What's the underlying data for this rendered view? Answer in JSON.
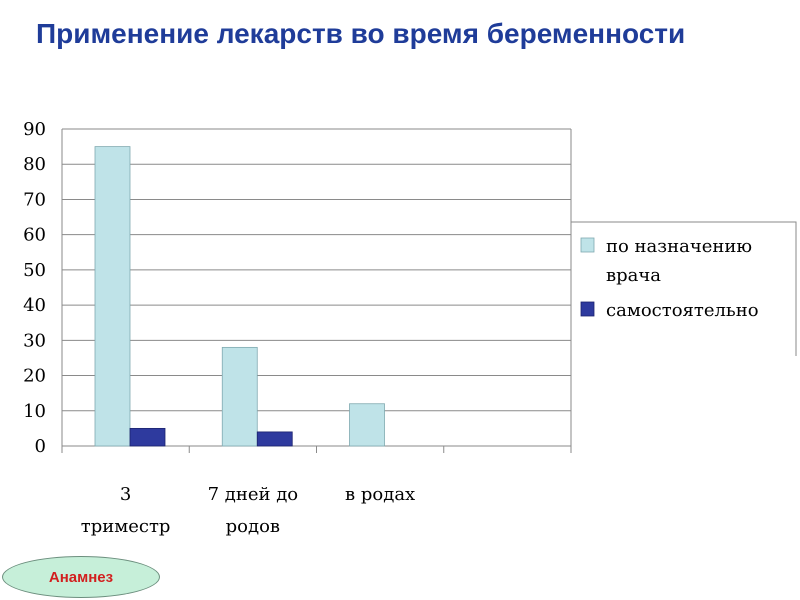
{
  "slide": {
    "title": "Применение лекарств во время беременности",
    "button_label": "Анамнез"
  },
  "colors": {
    "title": "#1f3c99",
    "series_1": "#bfe3e8",
    "series_2": "#2e3a9e",
    "button_fill": "#c6efd9",
    "button_text": "#d21f1f"
  },
  "chart_data": {
    "type": "bar",
    "categories": [
      [
        "3",
        "триместр"
      ],
      [
        "7 дней до",
        "родов"
      ],
      [
        "в родах"
      ],
      [
        ""
      ]
    ],
    "series": [
      {
        "name": "по назначению врача",
        "legend_lines": [
          "по назначению",
          "врача"
        ],
        "values": [
          85,
          28,
          12,
          null
        ]
      },
      {
        "name": "самостоятельно",
        "legend_lines": [
          "самостоятельно"
        ],
        "values": [
          5,
          4,
          null,
          null
        ]
      }
    ],
    "yticks": [
      "0",
      "10",
      "20",
      "30",
      "40",
      "50",
      "60",
      "70",
      "80",
      "90"
    ],
    "ylim": [
      0,
      90
    ],
    "grid": true,
    "legend_position": "right"
  }
}
